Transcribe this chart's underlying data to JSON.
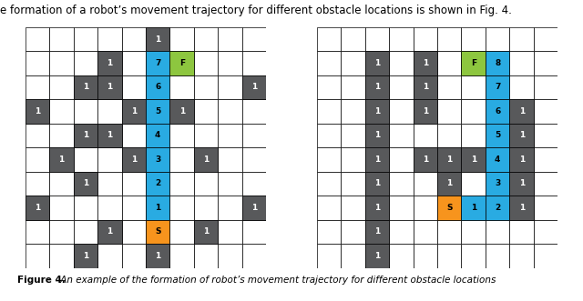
{
  "colors": {
    "blue": "#29ABE2",
    "green": "#8DC63F",
    "yellow": "#F7941D",
    "gray": "#58595B",
    "white": "#FFFFFF"
  },
  "left_cells": [
    [
      0,
      5,
      "gray",
      "1",
      "white"
    ],
    [
      1,
      3,
      "gray",
      "1",
      "white"
    ],
    [
      1,
      5,
      "blue",
      "7",
      "black"
    ],
    [
      1,
      6,
      "green",
      "F",
      "black"
    ],
    [
      2,
      2,
      "gray",
      "1",
      "white"
    ],
    [
      2,
      3,
      "gray",
      "1",
      "white"
    ],
    [
      2,
      5,
      "blue",
      "6",
      "black"
    ],
    [
      2,
      9,
      "gray",
      "1",
      "white"
    ],
    [
      3,
      0,
      "gray",
      "1",
      "white"
    ],
    [
      3,
      4,
      "gray",
      "1",
      "white"
    ],
    [
      3,
      5,
      "blue",
      "5",
      "black"
    ],
    [
      3,
      6,
      "gray",
      "1",
      "white"
    ],
    [
      4,
      2,
      "gray",
      "1",
      "white"
    ],
    [
      4,
      3,
      "gray",
      "1",
      "white"
    ],
    [
      4,
      5,
      "blue",
      "4",
      "black"
    ],
    [
      5,
      1,
      "gray",
      "1",
      "white"
    ],
    [
      5,
      4,
      "gray",
      "1",
      "white"
    ],
    [
      5,
      5,
      "blue",
      "3",
      "black"
    ],
    [
      5,
      7,
      "gray",
      "1",
      "white"
    ],
    [
      6,
      2,
      "gray",
      "1",
      "white"
    ],
    [
      6,
      5,
      "blue",
      "2",
      "black"
    ],
    [
      7,
      0,
      "gray",
      "1",
      "white"
    ],
    [
      7,
      5,
      "blue",
      "1",
      "black"
    ],
    [
      7,
      9,
      "gray",
      "1",
      "white"
    ],
    [
      8,
      3,
      "gray",
      "1",
      "white"
    ],
    [
      8,
      5,
      "yellow",
      "S",
      "black"
    ],
    [
      8,
      7,
      "gray",
      "1",
      "white"
    ],
    [
      9,
      2,
      "gray",
      "1",
      "white"
    ],
    [
      9,
      5,
      "gray",
      "1",
      "white"
    ]
  ],
  "right_cells": [
    [
      1,
      2,
      "gray",
      "1",
      "white"
    ],
    [
      1,
      4,
      "gray",
      "1",
      "white"
    ],
    [
      1,
      6,
      "green",
      "F",
      "black"
    ],
    [
      1,
      7,
      "blue",
      "8",
      "black"
    ],
    [
      2,
      2,
      "gray",
      "1",
      "white"
    ],
    [
      2,
      4,
      "gray",
      "1",
      "white"
    ],
    [
      2,
      7,
      "blue",
      "7",
      "black"
    ],
    [
      3,
      2,
      "gray",
      "1",
      "white"
    ],
    [
      3,
      4,
      "gray",
      "1",
      "white"
    ],
    [
      3,
      7,
      "blue",
      "6",
      "black"
    ],
    [
      3,
      8,
      "gray",
      "1",
      "white"
    ],
    [
      4,
      2,
      "gray",
      "1",
      "white"
    ],
    [
      4,
      7,
      "blue",
      "5",
      "black"
    ],
    [
      4,
      8,
      "gray",
      "1",
      "white"
    ],
    [
      5,
      2,
      "gray",
      "1",
      "white"
    ],
    [
      5,
      4,
      "gray",
      "1",
      "white"
    ],
    [
      5,
      5,
      "gray",
      "1",
      "white"
    ],
    [
      5,
      6,
      "gray",
      "1",
      "white"
    ],
    [
      5,
      7,
      "blue",
      "4",
      "black"
    ],
    [
      5,
      8,
      "gray",
      "1",
      "white"
    ],
    [
      6,
      2,
      "gray",
      "1",
      "white"
    ],
    [
      6,
      5,
      "gray",
      "1",
      "white"
    ],
    [
      6,
      7,
      "blue",
      "3",
      "black"
    ],
    [
      6,
      8,
      "gray",
      "1",
      "white"
    ],
    [
      7,
      2,
      "gray",
      "1",
      "white"
    ],
    [
      7,
      5,
      "yellow",
      "S",
      "black"
    ],
    [
      7,
      6,
      "blue",
      "1",
      "black"
    ],
    [
      7,
      7,
      "blue",
      "2",
      "black"
    ],
    [
      7,
      8,
      "gray",
      "1",
      "white"
    ],
    [
      8,
      2,
      "gray",
      "1",
      "white"
    ],
    [
      9,
      2,
      "gray",
      "1",
      "white"
    ]
  ],
  "grid_rows": 10,
  "grid_cols": 10,
  "caption_bold": "Figure 4.",
  "caption_rest": " An example of the formation of robot’s movement trajectory for different obstacle locations",
  "header_text": "e formation of a robot’s movement trajectory for different obstacle locations is shown in Fig. 4.",
  "caption_fontsize": 7.5,
  "header_fontsize": 8.5,
  "label_fontsize": 6.5
}
